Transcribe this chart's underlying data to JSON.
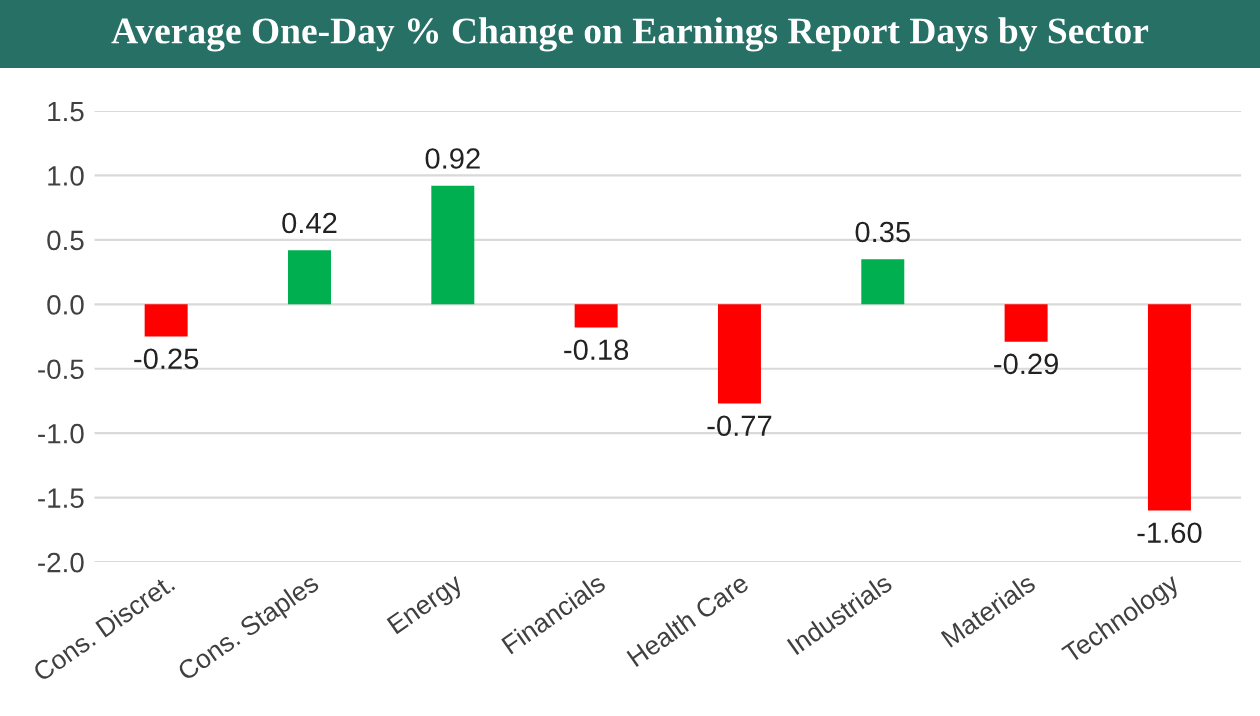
{
  "chart_data": {
    "type": "bar",
    "title": "Average One-Day % Change on Earnings Report Days by Sector",
    "categories": [
      "Cons. Discret.",
      "Cons. Staples",
      "Energy",
      "Financials",
      "Health Care",
      "Industrials",
      "Materials",
      "Technology"
    ],
    "values": [
      -0.25,
      0.42,
      0.92,
      -0.18,
      -0.77,
      0.35,
      -0.29,
      -1.6
    ],
    "colors": [
      "#ff0000",
      "#00b050",
      "#00b050",
      "#ff0000",
      "#ff0000",
      "#00b050",
      "#ff0000",
      "#ff0000"
    ],
    "value_labels": [
      "-0.25",
      "0.42",
      "0.92",
      "-0.18",
      "-0.77",
      "0.35",
      "-0.29",
      "-1.60"
    ],
    "ylim": [
      -2.0,
      1.5
    ],
    "yticks": [
      {
        "value": -2.0,
        "label": "-2.0"
      },
      {
        "value": -1.5,
        "label": "-1.5"
      },
      {
        "value": -1.0,
        "label": "-1.0"
      },
      {
        "value": -0.5,
        "label": "-0.5"
      },
      {
        "value": 0.0,
        "label": "0.0"
      },
      {
        "value": 0.5,
        "label": "0.5"
      },
      {
        "value": 1.0,
        "label": "1.0"
      },
      {
        "value": 1.5,
        "label": "1.5"
      }
    ],
    "grid": "y",
    "legend": false
  }
}
